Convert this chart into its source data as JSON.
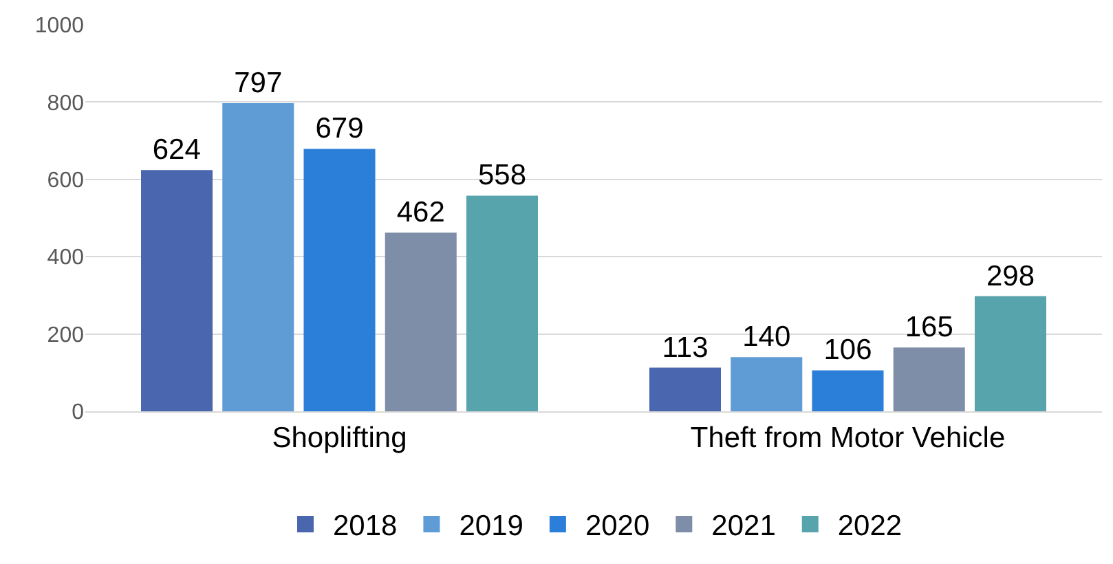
{
  "chart_data": {
    "type": "bar",
    "categories": [
      "Shoplifting",
      "Theft from Motor Vehicle"
    ],
    "series": [
      {
        "name": "2018",
        "color": "#4a66ae",
        "values": [
          624,
          113
        ]
      },
      {
        "name": "2019",
        "color": "#5f9cd6",
        "values": [
          797,
          140
        ]
      },
      {
        "name": "2020",
        "color": "#2b7fd9",
        "values": [
          679,
          106
        ]
      },
      {
        "name": "2021",
        "color": "#7f8ea8",
        "values": [
          462,
          165
        ]
      },
      {
        "name": "2022",
        "color": "#58a4ac",
        "values": [
          558,
          298
        ]
      }
    ],
    "ylim": [
      0,
      1000
    ],
    "yticks": [
      0,
      200,
      400,
      600,
      800,
      1000
    ],
    "grid": "y",
    "legend": "bottom",
    "data_labels": true
  }
}
